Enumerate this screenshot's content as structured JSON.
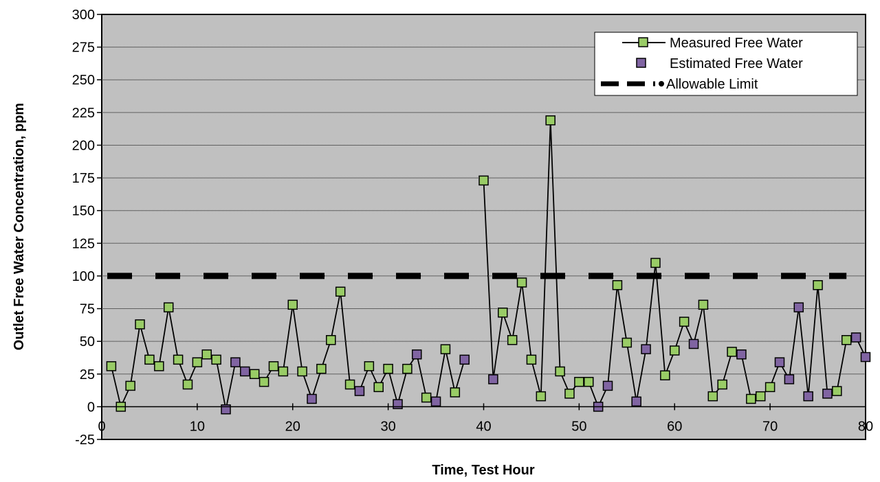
{
  "chart_data": {
    "type": "line",
    "title": "",
    "xlabel": "Time, Test Hour",
    "ylabel": "Outlet Free Water Concentration, ppm",
    "xlim": [
      0,
      80
    ],
    "ylim": [
      -25,
      300
    ],
    "xticks": [
      "0",
      "10",
      "20",
      "30",
      "40",
      "50",
      "60",
      "70",
      "80"
    ],
    "yticks": [
      "-25",
      "0",
      "25",
      "50",
      "75",
      "100",
      "125",
      "150",
      "175",
      "200",
      "225",
      "250",
      "275",
      "300"
    ],
    "grid": "horizontal",
    "legend_position": "top-right",
    "series": [
      {
        "name": "Measured Free Water",
        "marker_color": "#99cc66",
        "line_color": "#000000",
        "points": [
          [
            1,
            31
          ],
          [
            2,
            0
          ],
          [
            3,
            16
          ],
          [
            4,
            63
          ],
          [
            5,
            36
          ],
          [
            6,
            31
          ],
          [
            7,
            76
          ],
          [
            8,
            36
          ],
          [
            9,
            17
          ],
          [
            10,
            34
          ],
          [
            11,
            40
          ],
          [
            12,
            36
          ],
          [
            13,
            -2
          ],
          [
            14,
            34
          ],
          [
            15,
            27
          ],
          [
            16,
            25
          ],
          [
            17,
            19
          ],
          [
            18,
            31
          ],
          [
            19,
            27
          ],
          [
            20,
            78
          ],
          [
            21,
            27
          ],
          [
            22,
            6
          ],
          [
            23,
            29
          ],
          [
            24,
            51
          ],
          [
            25,
            88
          ],
          [
            26,
            17
          ],
          [
            27,
            12
          ],
          [
            28,
            31
          ],
          [
            29,
            15
          ],
          [
            30,
            29
          ],
          [
            31,
            2
          ],
          [
            32,
            29
          ],
          [
            33,
            40
          ],
          [
            34,
            7
          ],
          [
            35,
            4
          ],
          [
            36,
            44
          ],
          [
            37,
            11
          ],
          [
            38,
            36
          ],
          [
            40,
            173
          ],
          [
            41,
            21
          ],
          [
            42,
            72
          ],
          [
            43,
            51
          ],
          [
            44,
            95
          ],
          [
            45,
            36
          ],
          [
            46,
            8
          ],
          [
            47,
            219
          ],
          [
            48,
            27
          ],
          [
            49,
            10
          ],
          [
            50,
            19
          ],
          [
            51,
            19
          ],
          [
            52,
            0
          ],
          [
            53,
            16
          ],
          [
            54,
            93
          ],
          [
            55,
            49
          ],
          [
            56,
            4
          ],
          [
            57,
            44
          ],
          [
            58,
            110
          ],
          [
            59,
            24
          ],
          [
            60,
            43
          ],
          [
            61,
            65
          ],
          [
            62,
            48
          ],
          [
            63,
            78
          ],
          [
            64,
            8
          ],
          [
            65,
            17
          ],
          [
            66,
            42
          ],
          [
            67,
            40
          ],
          [
            68,
            6
          ],
          [
            69,
            8
          ],
          [
            70,
            15
          ],
          [
            71,
            34
          ],
          [
            72,
            21
          ],
          [
            73,
            76
          ],
          [
            74,
            8
          ],
          [
            75,
            93
          ],
          [
            76,
            10
          ],
          [
            77,
            12
          ],
          [
            78,
            51
          ],
          [
            79,
            53
          ],
          [
            80,
            38
          ]
        ]
      },
      {
        "name": "Estimated Free Water",
        "marker_color": "#8064a2",
        "points": [
          [
            13,
            -2
          ],
          [
            14,
            34
          ],
          [
            15,
            27
          ],
          [
            22,
            6
          ],
          [
            27,
            12
          ],
          [
            31,
            2
          ],
          [
            33,
            40
          ],
          [
            35,
            4
          ],
          [
            38,
            36
          ],
          [
            41,
            21
          ],
          [
            52,
            0
          ],
          [
            53,
            16
          ],
          [
            56,
            4
          ],
          [
            57,
            44
          ],
          [
            62,
            48
          ],
          [
            67,
            40
          ],
          [
            71,
            34
          ],
          [
            72,
            21
          ],
          [
            73,
            76
          ],
          [
            74,
            8
          ],
          [
            76,
            10
          ],
          [
            79,
            53
          ],
          [
            80,
            38
          ]
        ]
      },
      {
        "name": "Allowable Limit",
        "line_color": "#000000",
        "style": "dashed",
        "value": 100,
        "x_range": [
          0,
          78
        ]
      }
    ]
  }
}
